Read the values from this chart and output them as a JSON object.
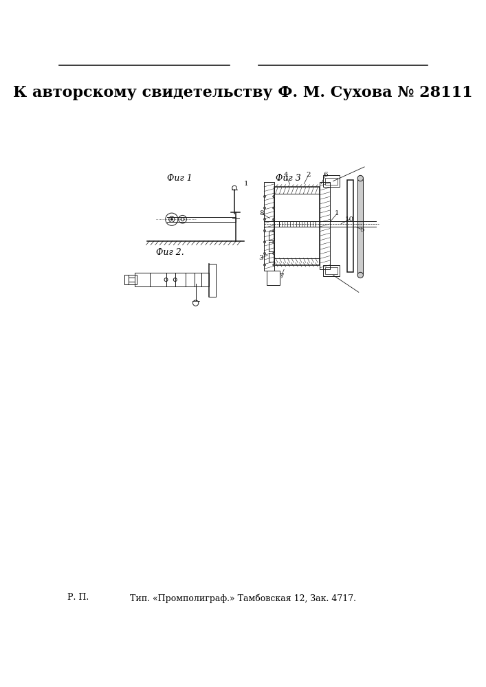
{
  "title": "К авторскому свидетельству Ф. М. Сухова № 28111",
  "footer": "Тип. «Промполиграф.» Тамбовская 12, Зак. 4717.",
  "footer_left": "Р. П.",
  "fig1_label": "Фиг 1",
  "fig2_label": "Фиг 2.",
  "fig3_label": "Фиг 3",
  "bg_color": "#ffffff",
  "text_color": "#000000",
  "line_color": "#1a1a1a",
  "title_fontsize": 16,
  "fig_label_fontsize": 9,
  "footer_fontsize": 9,
  "num_fontsize": 7.5
}
